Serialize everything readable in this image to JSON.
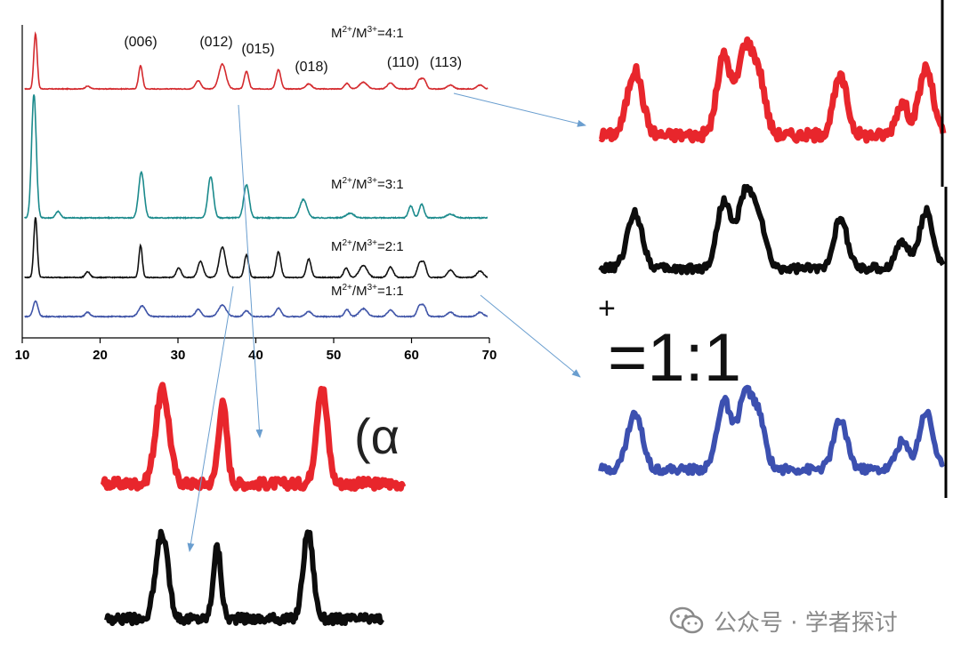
{
  "chart_data": {
    "type": "line",
    "title": "",
    "xlabel": "",
    "ylabel": "",
    "xlim": [
      10,
      70
    ],
    "x_ticks": [
      "10",
      "20",
      "30",
      "40",
      "50",
      "60",
      "70"
    ],
    "peak_labels": [
      {
        "text": "(006)",
        "x": 25.2
      },
      {
        "text": "(012)",
        "x": 35.7
      },
      {
        "text": "(015)",
        "x": 38.8
      },
      {
        "text": "(018)",
        "x": 46.3
      },
      {
        "text": "(110)",
        "x": 60.5
      },
      {
        "text": "(113)",
        "x": 61.8
      }
    ],
    "series": [
      {
        "name": "4:1",
        "label": "M2+/M3+=4:1",
        "color": "#d42a2e",
        "baseline": 0.0,
        "noise": 0.12,
        "peaks": [
          [
            11.7,
            10,
            0.22
          ],
          [
            18.4,
            0.5,
            0.3
          ],
          [
            25.2,
            4.2,
            0.25
          ],
          [
            32.6,
            1.5,
            0.35
          ],
          [
            35.7,
            4.5,
            0.45
          ],
          [
            38.8,
            3.2,
            0.28
          ],
          [
            42.9,
            3.5,
            0.3
          ],
          [
            46.8,
            0.9,
            0.4
          ],
          [
            51.7,
            1.0,
            0.3
          ],
          [
            53.8,
            1.2,
            0.5
          ],
          [
            57.3,
            1.1,
            0.4
          ],
          [
            61.0,
            1.5,
            0.3
          ],
          [
            61.6,
            1.6,
            0.3
          ],
          [
            65.0,
            0.7,
            0.4
          ],
          [
            68.8,
            0.7,
            0.4
          ]
        ]
      },
      {
        "name": "3:1",
        "label": "M2+/M3+=3:1",
        "color": "#1b8a8c",
        "baseline": 0.0,
        "noise": 0.1,
        "peaks": [
          [
            11.5,
            13.5,
            0.3
          ],
          [
            14.6,
            0.7,
            0.3
          ],
          [
            25.3,
            5.0,
            0.35
          ],
          [
            34.2,
            4.5,
            0.35
          ],
          [
            38.8,
            3.6,
            0.35
          ],
          [
            46.1,
            2.0,
            0.45
          ],
          [
            52.1,
            0.5,
            0.5
          ],
          [
            59.9,
            1.3,
            0.3
          ],
          [
            61.3,
            1.5,
            0.3
          ],
          [
            65.0,
            0.4,
            0.5
          ]
        ]
      },
      {
        "name": "2:1",
        "label": "M2+/M3+=2:1",
        "color": "#111111",
        "baseline": 0.0,
        "noise": 0.1,
        "peaks": [
          [
            11.7,
            7.5,
            0.22
          ],
          [
            18.4,
            0.7,
            0.3
          ],
          [
            25.2,
            4.0,
            0.22
          ],
          [
            30.1,
            1.2,
            0.3
          ],
          [
            32.9,
            2.0,
            0.35
          ],
          [
            35.7,
            3.8,
            0.4
          ],
          [
            38.8,
            2.8,
            0.28
          ],
          [
            42.9,
            3.2,
            0.3
          ],
          [
            46.8,
            2.3,
            0.3
          ],
          [
            51.6,
            1.2,
            0.3
          ],
          [
            53.8,
            1.5,
            0.5
          ],
          [
            57.3,
            1.3,
            0.35
          ],
          [
            61.0,
            1.6,
            0.3
          ],
          [
            61.6,
            1.7,
            0.3
          ],
          [
            65.0,
            0.9,
            0.4
          ],
          [
            68.8,
            0.8,
            0.4
          ]
        ]
      },
      {
        "name": "1:1",
        "label": "M2+/M3+=1:1",
        "color": "#4055a8",
        "baseline": 0.0,
        "noise": 0.12,
        "peaks": [
          [
            11.7,
            2.2,
            0.3
          ],
          [
            18.4,
            0.6,
            0.3
          ],
          [
            25.4,
            1.5,
            0.45
          ],
          [
            32.6,
            1.0,
            0.35
          ],
          [
            35.7,
            1.6,
            0.5
          ],
          [
            38.8,
            0.8,
            0.35
          ],
          [
            42.9,
            1.2,
            0.35
          ],
          [
            46.8,
            0.7,
            0.4
          ],
          [
            51.7,
            1.0,
            0.3
          ],
          [
            53.8,
            1.1,
            0.5
          ],
          [
            57.3,
            0.9,
            0.4
          ],
          [
            61.0,
            1.4,
            0.3
          ],
          [
            61.6,
            1.4,
            0.3
          ],
          [
            65.0,
            0.6,
            0.4
          ],
          [
            68.8,
            0.6,
            0.4
          ]
        ]
      }
    ],
    "insets": [
      {
        "id": "zoom-right-top",
        "panel_text": "",
        "series": "4:1",
        "color": "#e8262c"
      },
      {
        "id": "zoom-right-mid",
        "panel_text": "",
        "series": "2:1",
        "color": "#0d0d0d"
      },
      {
        "id": "zoom-right-bottom",
        "panel_text": "=1:1",
        "series": "1:1",
        "color": "#3c50b0"
      },
      {
        "id": "zoom-left-top",
        "panel_text": "(α",
        "series": "4:1",
        "color": "#e8262c"
      },
      {
        "id": "zoom-left-bottom",
        "panel_text": "",
        "series": "2:1",
        "color": "#0d0d0d"
      }
    ]
  },
  "watermark": {
    "text": "公众号 · 学者探讨",
    "icon": "wechat-icon",
    "color": "#8a8a8a"
  },
  "arrow_color": "#6a9ecf"
}
